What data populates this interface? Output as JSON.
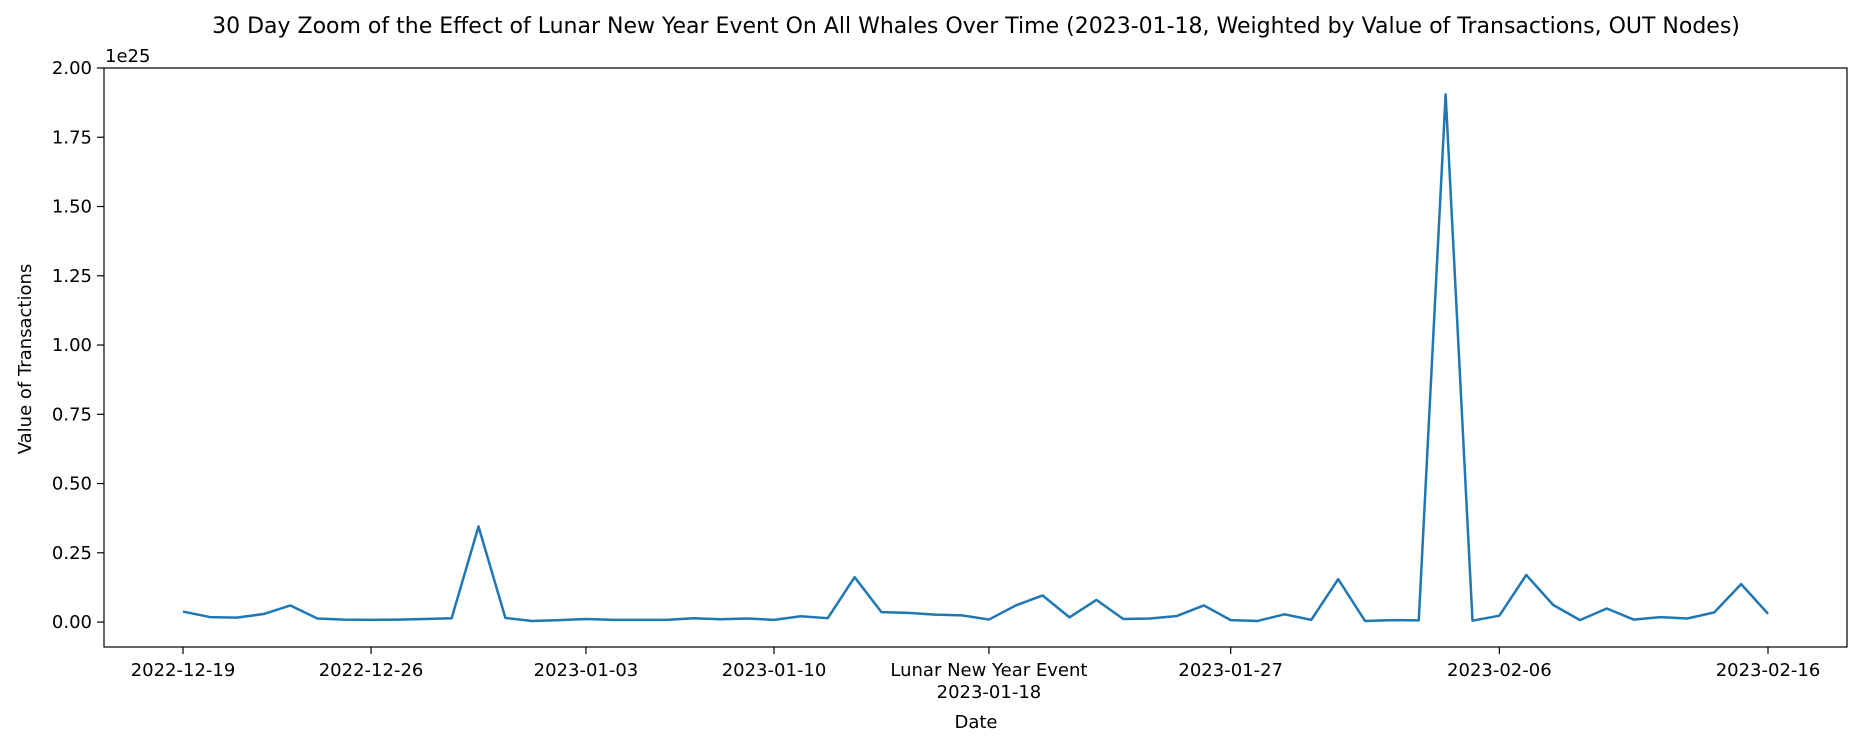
{
  "chart_data": {
    "type": "line",
    "title": "30 Day Zoom of the Effect of Lunar New Year Event On All Whales Over Time (2023-01-18, Weighted by Value of Transactions, OUT Nodes)",
    "xlabel": "Date",
    "ylabel": "Value of Transactions",
    "y_offset_label": "1e25",
    "ylim": [
      -0.09,
      2.0
    ],
    "y_ticks": [
      0.0,
      0.25,
      0.5,
      0.75,
      1.0,
      1.25,
      1.5,
      1.75,
      2.0
    ],
    "y_tick_labels": [
      "0.00",
      "0.25",
      "0.50",
      "0.75",
      "1.00",
      "1.25",
      "1.50",
      "1.75",
      "2.00"
    ],
    "x_ticks": [
      "2022-12-19",
      "2022-12-26",
      "2023-01-03",
      "2023-01-10",
      "2023-01-18",
      "2023-01-27",
      "2023-02-06",
      "2023-02-16"
    ],
    "x_tick_labels": [
      "2022-12-19",
      "2022-12-26",
      "2023-01-03",
      "2023-01-10",
      "Lunar New Year Event\n2023-01-18",
      "2023-01-27",
      "2023-02-06",
      "2023-02-16"
    ],
    "x_start": "2022-12-19",
    "x_end": "2023-02-16",
    "color": "#1f77b4",
    "grid": false,
    "x": [
      "2022-12-19",
      "2022-12-20",
      "2022-12-21",
      "2022-12-22",
      "2022-12-23",
      "2022-12-24",
      "2022-12-25",
      "2022-12-26",
      "2022-12-27",
      "2022-12-28",
      "2022-12-29",
      "2022-12-30",
      "2022-12-31",
      "2023-01-01",
      "2023-01-02",
      "2023-01-03",
      "2023-01-04",
      "2023-01-05",
      "2023-01-06",
      "2023-01-07",
      "2023-01-08",
      "2023-01-09",
      "2023-01-10",
      "2023-01-11",
      "2023-01-12",
      "2023-01-13",
      "2023-01-14",
      "2023-01-15",
      "2023-01-16",
      "2023-01-17",
      "2023-01-18",
      "2023-01-19",
      "2023-01-20",
      "2023-01-21",
      "2023-01-22",
      "2023-01-23",
      "2023-01-24",
      "2023-01-25",
      "2023-01-26",
      "2023-01-27",
      "2023-01-28",
      "2023-01-29",
      "2023-01-30",
      "2023-01-31",
      "2023-02-01",
      "2023-02-02",
      "2023-02-03",
      "2023-02-04",
      "2023-02-05",
      "2023-02-06",
      "2023-02-07",
      "2023-02-08",
      "2023-02-09",
      "2023-02-10",
      "2023-02-11",
      "2023-02-12",
      "2023-02-13",
      "2023-02-14",
      "2023-02-15",
      "2023-02-16"
    ],
    "values": [
      0.038,
      0.018,
      0.016,
      0.029,
      0.06,
      0.013,
      0.009,
      0.008,
      0.009,
      0.011,
      0.014,
      0.345,
      0.015,
      0.004,
      0.007,
      0.011,
      0.008,
      0.008,
      0.008,
      0.014,
      0.01,
      0.013,
      0.008,
      0.021,
      0.014,
      0.162,
      0.036,
      0.033,
      0.027,
      0.024,
      0.009,
      0.06,
      0.096,
      0.017,
      0.08,
      0.011,
      0.013,
      0.022,
      0.06,
      0.007,
      0.004,
      0.028,
      0.008,
      0.155,
      0.004,
      0.007,
      0.006,
      1.905,
      0.005,
      0.023,
      0.17,
      0.062,
      0.007,
      0.049,
      0.009,
      0.018,
      0.013,
      0.035,
      0.137,
      0.03
    ]
  }
}
